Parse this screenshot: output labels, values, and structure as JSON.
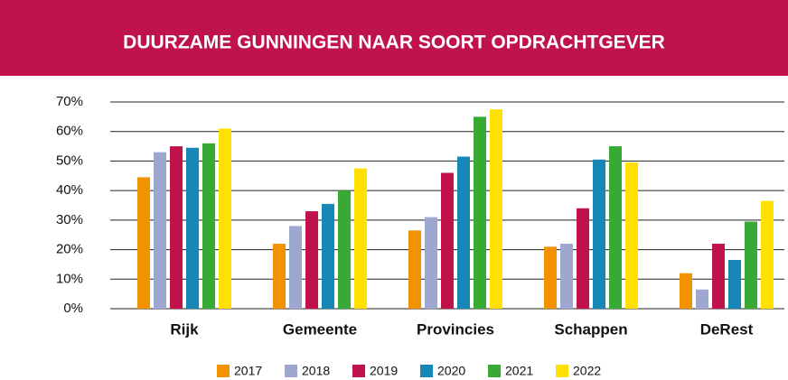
{
  "chart_data": {
    "type": "bar",
    "title": "DUURZAME GUNNINGEN NAAR SOORT OPDRACHTGEVER",
    "categories": [
      "Rijk",
      "Gemeente",
      "Provincies",
      "Schappen",
      "DeRest"
    ],
    "series": [
      {
        "name": "2017",
        "color": "#f39200",
        "values": [
          44.5,
          22,
          26.5,
          21,
          12
        ]
      },
      {
        "name": "2018",
        "color": "#9ea7cf",
        "values": [
          53,
          28,
          31,
          22,
          6.5
        ]
      },
      {
        "name": "2019",
        "color": "#c0124b",
        "values": [
          55,
          33,
          46,
          34,
          22
        ]
      },
      {
        "name": "2020",
        "color": "#1687b7",
        "values": [
          54.5,
          35.5,
          51.5,
          50.5,
          16.5
        ]
      },
      {
        "name": "2021",
        "color": "#39a935",
        "values": [
          56,
          40,
          65,
          55,
          29.5
        ]
      },
      {
        "name": "2022",
        "color": "#ffe000",
        "values": [
          61,
          47.5,
          67.5,
          49.5,
          36.5
        ]
      }
    ],
    "ylim": [
      0,
      70
    ],
    "yticks": [
      {
        "value": 0,
        "label": "0%"
      },
      {
        "value": 10,
        "label": "10%"
      },
      {
        "value": 20,
        "label": "20%"
      },
      {
        "value": 30,
        "label": "30%"
      },
      {
        "value": 40,
        "label": "40%"
      },
      {
        "value": 50,
        "label": "50%"
      },
      {
        "value": 60,
        "label": "60%"
      },
      {
        "value": 70,
        "label": "70%"
      }
    ],
    "grid": true,
    "legend": "bottom"
  }
}
